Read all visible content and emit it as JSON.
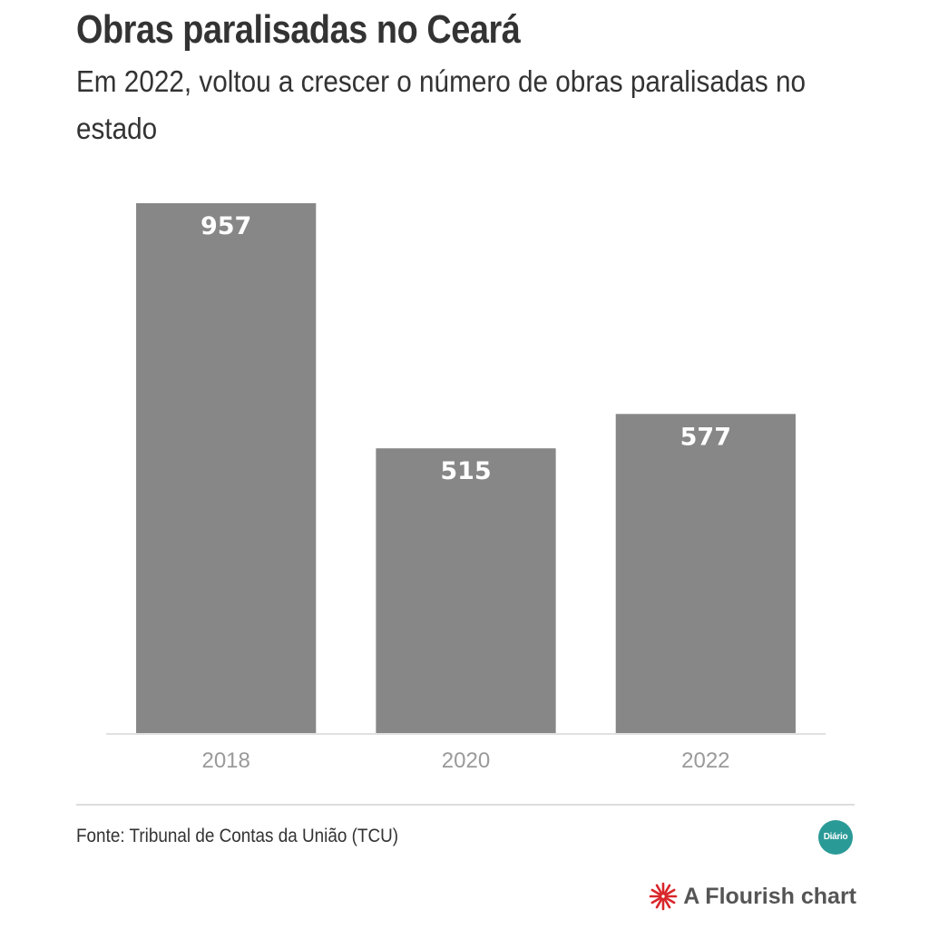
{
  "header": {
    "title": "Obras paralisadas no Ceará",
    "subtitle": "Em 2022, voltou a crescer o número de obras paralisadas no estado"
  },
  "chart_data": {
    "type": "bar",
    "title": "Obras paralisadas no Ceará",
    "subtitle": "Em 2022, voltou a crescer o número de obras paralisadas no estado",
    "categories": [
      "2018",
      "2020",
      "2022"
    ],
    "values": [
      957,
      515,
      577
    ],
    "xlabel": "",
    "ylabel": "",
    "ylim": [
      0,
      957
    ],
    "grid": false,
    "legend": "none",
    "bar_color": "#878787"
  },
  "footer": {
    "source": "Fonte: Tribunal de Contas da União (TCU)",
    "logo_text": "Diário",
    "logo_color": "#2a9a97",
    "credit": "A Flourish chart",
    "credit_icon_color": "#d9262a"
  }
}
